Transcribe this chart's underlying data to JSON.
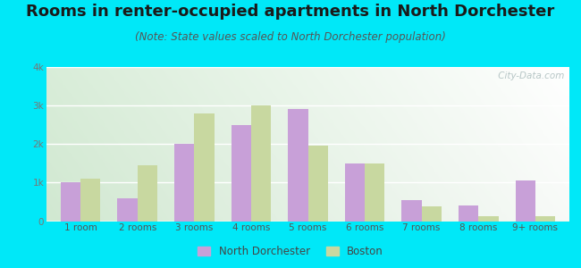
{
  "title": "Rooms in renter-occupied apartments in North Dorchester",
  "subtitle": "(Note: State values scaled to North Dorchester population)",
  "categories": [
    "1 room",
    "2 rooms",
    "3 rooms",
    "4 rooms",
    "5 rooms",
    "6 rooms",
    "7 rooms",
    "8 rooms",
    "9+ rooms"
  ],
  "north_dorchester": [
    1000,
    600,
    2000,
    2500,
    2900,
    1500,
    550,
    400,
    1050
  ],
  "boston": [
    1100,
    1450,
    2800,
    3000,
    1950,
    1500,
    380,
    130,
    130
  ],
  "nd_color": "#c8a0d8",
  "boston_color": "#c8d8a0",
  "ylim": [
    0,
    4000
  ],
  "yticks": [
    0,
    1000,
    2000,
    3000,
    4000
  ],
  "ytick_labels": [
    "0",
    "1k",
    "2k",
    "3k",
    "4k"
  ],
  "background_outer": "#00e8f8",
  "title_fontsize": 13,
  "subtitle_fontsize": 8.5,
  "bar_width": 0.35,
  "watermark": " City-Data.com",
  "legend_nd": "North Dorchester",
  "legend_boston": "Boston"
}
